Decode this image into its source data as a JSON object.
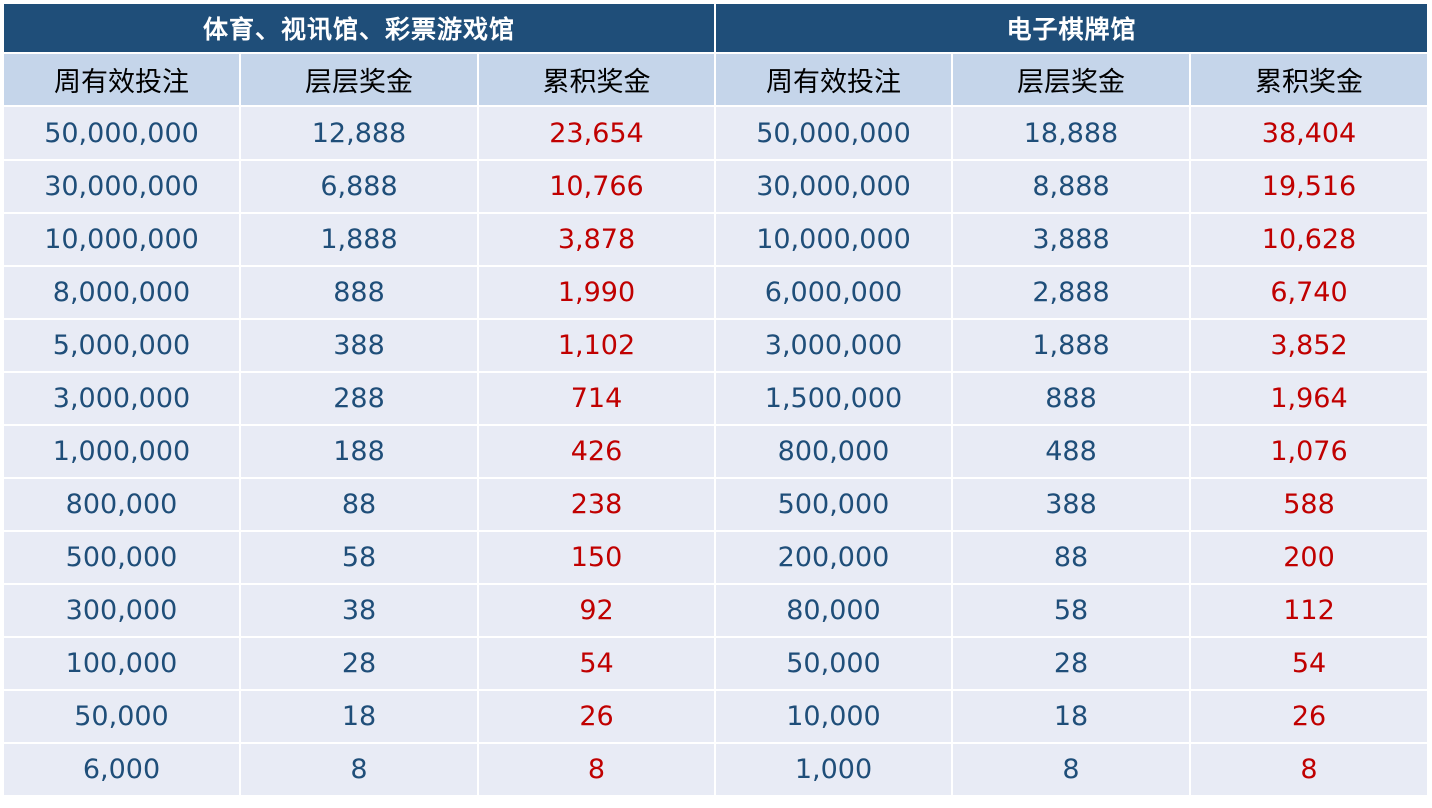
{
  "groups": [
    {
      "title": "体育、视讯馆、彩票游戏馆"
    },
    {
      "title": "电子棋牌馆"
    }
  ],
  "columns": [
    "周有效投注",
    "层层奖金",
    "累积奖金",
    "周有效投注",
    "层层奖金",
    "累积奖金"
  ],
  "colors": {
    "header_bg": "#1f4e79",
    "subheader_bg": "#c5d5ea",
    "row_bg": "#e8ebf5",
    "value_text": "#1f4e79",
    "accum_text": "#c00000"
  },
  "rows": [
    [
      "50,000,000",
      "12,888",
      "23,654",
      "50,000,000",
      "18,888",
      "38,404"
    ],
    [
      "30,000,000",
      "6,888",
      "10,766",
      "30,000,000",
      "8,888",
      "19,516"
    ],
    [
      "10,000,000",
      "1,888",
      "3,878",
      "10,000,000",
      "3,888",
      "10,628"
    ],
    [
      "8,000,000",
      "888",
      "1,990",
      "6,000,000",
      "2,888",
      "6,740"
    ],
    [
      "5,000,000",
      "388",
      "1,102",
      "3,000,000",
      "1,888",
      "3,852"
    ],
    [
      "3,000,000",
      "288",
      "714",
      "1,500,000",
      "888",
      "1,964"
    ],
    [
      "1,000,000",
      "188",
      "426",
      "800,000",
      "488",
      "1,076"
    ],
    [
      "800,000",
      "88",
      "238",
      "500,000",
      "388",
      "588"
    ],
    [
      "500,000",
      "58",
      "150",
      "200,000",
      "88",
      "200"
    ],
    [
      "300,000",
      "38",
      "92",
      "80,000",
      "58",
      "112"
    ],
    [
      "100,000",
      "28",
      "54",
      "50,000",
      "28",
      "54"
    ],
    [
      "50,000",
      "18",
      "26",
      "10,000",
      "18",
      "26"
    ],
    [
      "6,000",
      "8",
      "8",
      "1,000",
      "8",
      "8"
    ]
  ]
}
